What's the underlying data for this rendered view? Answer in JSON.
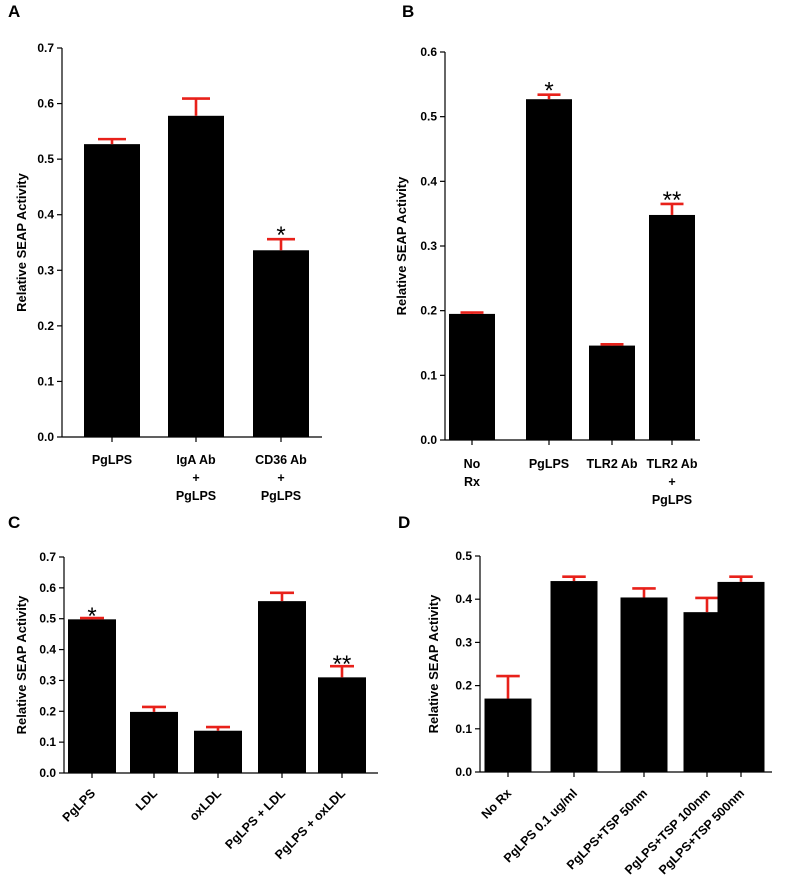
{
  "colors": {
    "bar": "#000000",
    "error_bar": "#e8211a",
    "axis": "#000000"
  },
  "chart_data": [
    {
      "panel": "A",
      "type": "bar",
      "ylabel": "Relative SEAP Activity",
      "ylim": [
        0,
        0.7
      ],
      "yticks": [
        "0.0",
        "0.1",
        "0.2",
        "0.3",
        "0.4",
        "0.5",
        "0.6",
        "0.7"
      ],
      "categories": [
        [
          "PgLPS"
        ],
        [
          "IgA Ab",
          "+",
          "PgLPS"
        ],
        [
          "CD36 Ab",
          "+",
          "PgLPS"
        ]
      ],
      "values": [
        0.527,
        0.578,
        0.336
      ],
      "errors": [
        0.009,
        0.031,
        0.02
      ],
      "annotations": [
        "",
        "",
        "*"
      ]
    },
    {
      "panel": "B",
      "type": "bar",
      "ylabel": "Relative SEAP Activity",
      "ylim": [
        0,
        0.6
      ],
      "yticks": [
        "0.0",
        "0.1",
        "0.2",
        "0.3",
        "0.4",
        "0.5",
        "0.6"
      ],
      "categories": [
        [
          "No",
          "Rx"
        ],
        [
          "PgLPS"
        ],
        [
          "TLR2 Ab"
        ],
        [
          "TLR2 Ab",
          "+",
          "PgLPS"
        ]
      ],
      "values": [
        0.195,
        0.527,
        0.146,
        0.348
      ],
      "errors": [
        0.002,
        0.007,
        0.002,
        0.017
      ],
      "annotations": [
        "",
        "*",
        "",
        "**"
      ]
    },
    {
      "panel": "C",
      "type": "bar",
      "ylabel": "Relative SEAP Activity",
      "ylim": [
        0,
        0.7
      ],
      "yticks": [
        "0.0",
        "0.1",
        "0.2",
        "0.3",
        "0.4",
        "0.5",
        "0.6",
        "0.7"
      ],
      "categories": [
        "PgLPS",
        "LDL",
        "oxLDL",
        "PgLPS + LDL",
        "PgLPS + oxLDL"
      ],
      "values": [
        0.498,
        0.198,
        0.137,
        0.557,
        0.31
      ],
      "errors": [
        0.004,
        0.016,
        0.012,
        0.027,
        0.036
      ],
      "annotations": [
        "*",
        "",
        "",
        "",
        "**"
      ]
    },
    {
      "panel": "D",
      "type": "bar",
      "ylabel": "Relative SEAP Activity",
      "ylim": [
        0,
        0.5
      ],
      "yticks": [
        "0.0",
        "0.1",
        "0.2",
        "0.3",
        "0.4",
        "0.5"
      ],
      "categories": [
        "No Rx",
        "PgLPS 0.1 ug/ml",
        "PgLPS+TSP 50nm",
        "PgLPS+TSP 100nm",
        "PgLPS+TSP 500nm"
      ],
      "values": [
        0.17,
        0.442,
        0.404,
        0.37,
        0.44
      ],
      "errors": [
        0.052,
        0.01,
        0.021,
        0.033,
        0.012
      ],
      "annotations": [
        "",
        "",
        "",
        "",
        ""
      ]
    }
  ]
}
